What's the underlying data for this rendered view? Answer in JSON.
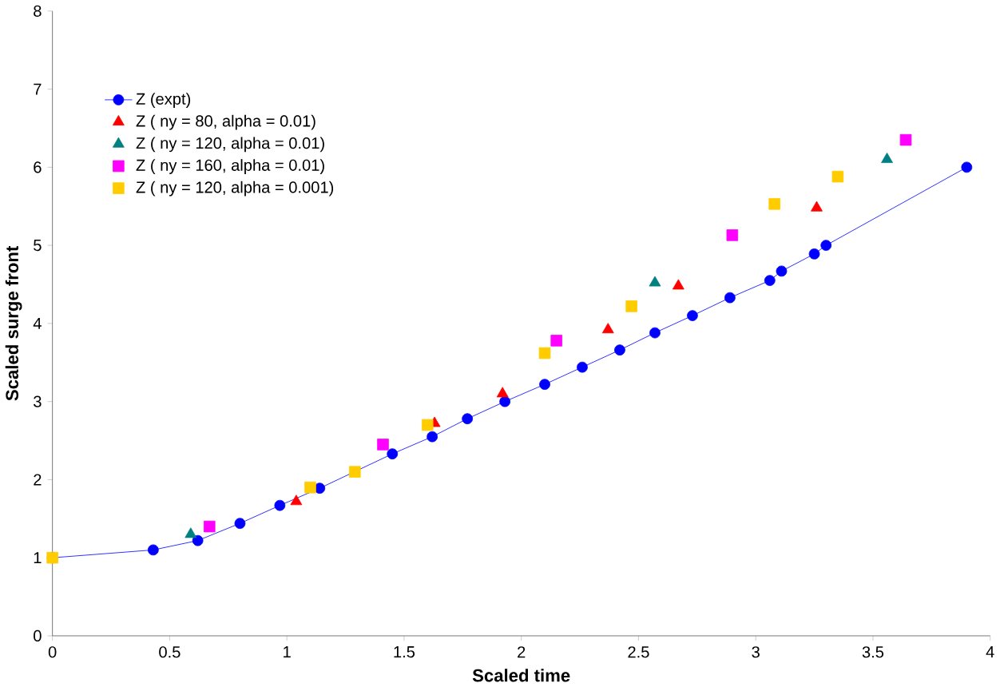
{
  "chart_data": {
    "type": "scatter",
    "xlabel": "Scaled time",
    "ylabel": "Scaled surge front",
    "xlim": [
      0,
      4
    ],
    "ylim": [
      0,
      8
    ],
    "xticks": [
      0,
      0.5,
      1,
      1.5,
      2,
      2.5,
      3,
      3.5,
      4
    ],
    "yticks": [
      0,
      1,
      2,
      3,
      4,
      5,
      6,
      7,
      8
    ],
    "legend": "top left",
    "grid": false,
    "series": [
      {
        "name": "Z (expt)",
        "type": "line",
        "marker": "circle",
        "color": "#0000ff",
        "x": [
          0,
          0.43,
          0.62,
          0.8,
          0.97,
          1.14,
          1.45,
          1.62,
          1.77,
          1.93,
          2.1,
          2.26,
          2.42,
          2.57,
          2.73,
          2.89,
          3.06,
          3.11,
          3.25,
          3.3,
          3.9
        ],
        "values": [
          1.0,
          1.1,
          1.22,
          1.44,
          1.67,
          1.89,
          2.33,
          2.55,
          2.78,
          3.0,
          3.22,
          3.44,
          3.66,
          3.88,
          4.1,
          4.33,
          4.55,
          4.67,
          4.89,
          5.0,
          6.0
        ]
      },
      {
        "name": "Z ( ny =  80,  alpha = 0.01)",
        "marker": "triangle",
        "color": "#ff0000",
        "x": [
          1.04,
          1.63,
          1.92,
          2.37,
          2.67,
          3.26
        ],
        "values": [
          1.72,
          2.72,
          3.1,
          3.92,
          4.48,
          5.48
        ]
      },
      {
        "name": "Z ( ny = 120, alpha = 0.01)",
        "marker": "triangle",
        "color": "#008080",
        "x": [
          0.59,
          2.57,
          3.56
        ],
        "values": [
          1.3,
          4.52,
          6.1
        ]
      },
      {
        "name": "Z ( ny = 160, alpha = 0.01)",
        "marker": "square",
        "color": "#ff00ff",
        "x": [
          0.67,
          1.41,
          2.15,
          2.9,
          3.64
        ],
        "values": [
          1.4,
          2.45,
          3.78,
          5.13,
          6.35
        ]
      },
      {
        "name": "Z ( ny = 120, alpha = 0.001)",
        "marker": "square",
        "color": "#ffcc00",
        "x": [
          0,
          1.1,
          1.29,
          1.6,
          2.1,
          2.47,
          3.08,
          3.35
        ],
        "values": [
          1.0,
          1.9,
          2.1,
          2.7,
          3.62,
          4.22,
          5.53,
          5.88
        ]
      }
    ]
  }
}
